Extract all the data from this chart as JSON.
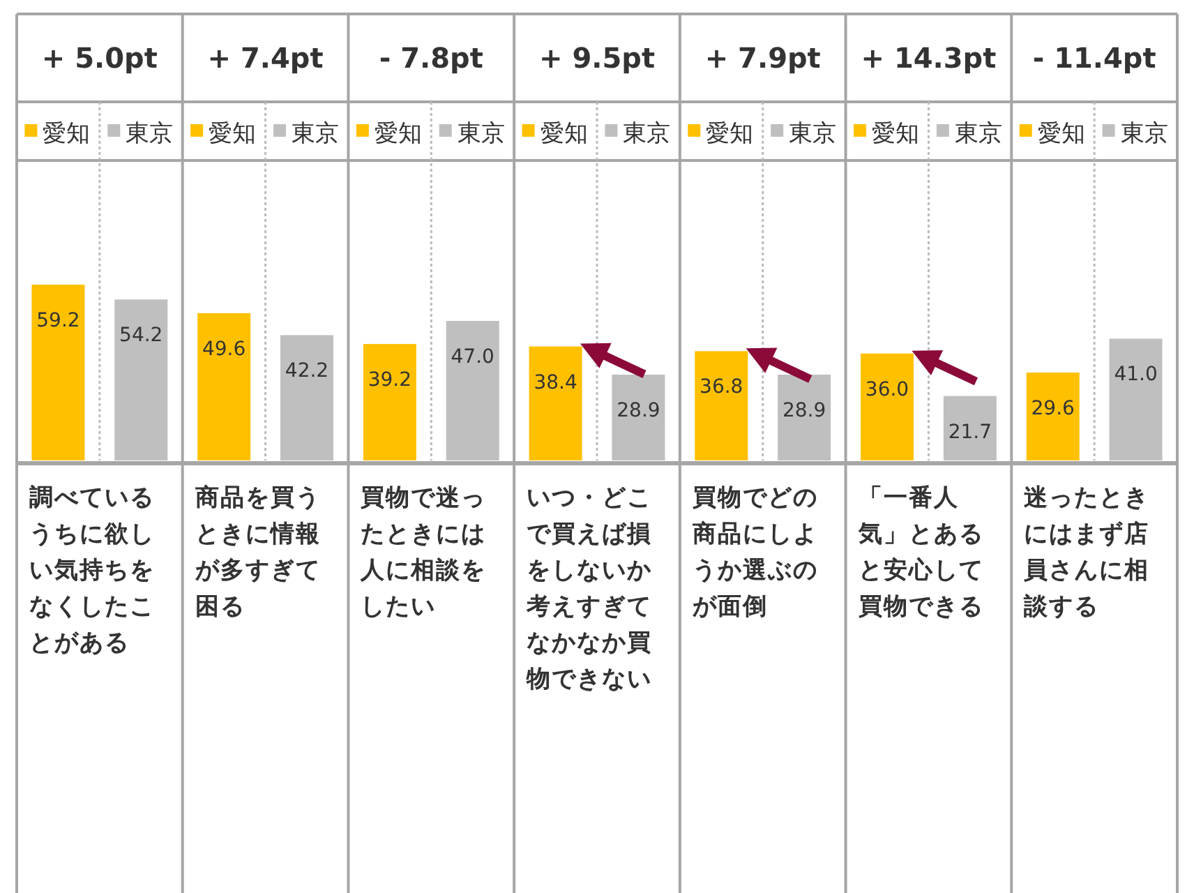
{
  "chart_data": {
    "type": "bar",
    "categories": [
      "調べているうちに欲しい気持ちをなくしたことがある",
      "商品を買うときに情報が多すぎて困る",
      "買物で迷ったときには人に相談をしたい",
      "いつ・どこで買えば損をしないか考えすぎてなかなか買物できない",
      "買物でどの商品にしようか選ぶのが面倒",
      "「一番人気」とあると安心して買物できる",
      "迷ったときにはまず店員さんに相談する"
    ],
    "series": [
      {
        "name": "愛知",
        "color": "#ffc000",
        "values": [
          59.2,
          49.6,
          39.2,
          38.4,
          36.8,
          36.0,
          29.6
        ],
        "value_labels": [
          "59.2",
          "49.6",
          "39.2",
          "38.4",
          "36.8",
          "36.0",
          "29.6"
        ]
      },
      {
        "name": "東京",
        "color": "#bfbfbf",
        "values": [
          54.2,
          42.2,
          47.0,
          28.9,
          28.9,
          21.7,
          41.0
        ],
        "value_labels": [
          "54.2",
          "42.2",
          "47.0",
          "28.9",
          "28.9",
          "21.7",
          "41.0"
        ]
      }
    ],
    "annotations": [
      "+ 5.0pt",
      "+ 7.4pt",
      "- 7.8pt",
      "+ 9.5pt",
      "+ 7.9pt",
      "+ 14.3pt",
      "- 11.4pt"
    ],
    "grid": true,
    "legend": "top"
  }
}
